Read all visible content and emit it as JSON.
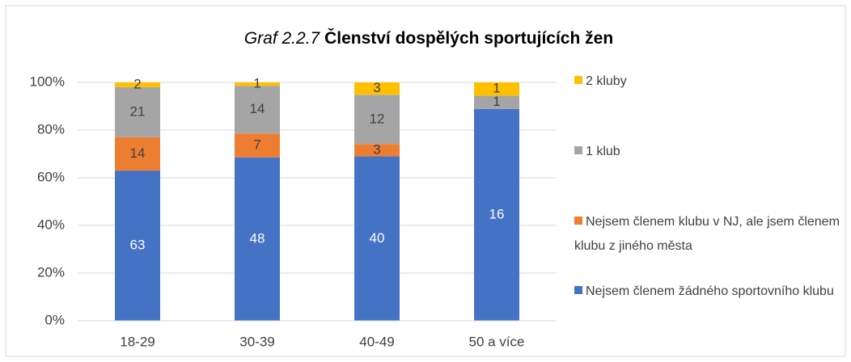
{
  "chart_data": {
    "type": "bar",
    "stacking": "percent",
    "title": {
      "number": "Graf 2.2.7",
      "text": "Členství dospělých sportujících žen"
    },
    "categories": [
      "18-29",
      "30-39",
      "40-49",
      "50 a více"
    ],
    "series": [
      {
        "name": "Nejsem členem žádného sportovního klubu",
        "color": "#4472c4",
        "values": [
          63,
          48,
          40,
          16
        ]
      },
      {
        "name": "Nejsem členem klubu v NJ, ale jsem členem klubu z jiného města",
        "color": "#ed7d31",
        "values": [
          14,
          7,
          3,
          null
        ]
      },
      {
        "name": "1 klub",
        "color": "#a5a5a5",
        "values": [
          21,
          14,
          12,
          1
        ]
      },
      {
        "name": "2 kluby",
        "color": "#ffc000",
        "values": [
          2,
          1,
          3,
          1
        ]
      }
    ],
    "ylim": [
      0,
      100
    ],
    "yticks": [
      {
        "value": 0,
        "label": "0%"
      },
      {
        "value": 20,
        "label": "20%"
      },
      {
        "value": 40,
        "label": "40%"
      },
      {
        "value": 60,
        "label": "60%"
      },
      {
        "value": 80,
        "label": "80%"
      },
      {
        "value": 100,
        "label": "100%"
      }
    ],
    "grid": true,
    "legend": "right"
  }
}
